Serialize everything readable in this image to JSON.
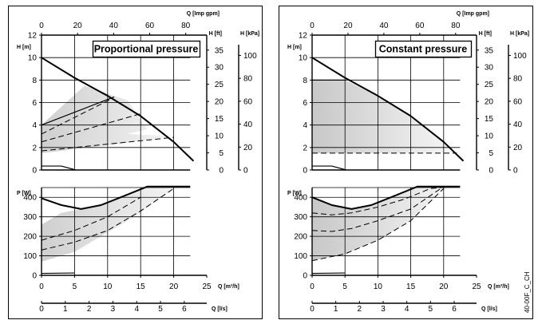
{
  "chart_data": [
    {
      "type": "line",
      "title": "Proportional pressure",
      "ticks": {
        "h_m": [
          "0",
          "2",
          "4",
          "6",
          "8",
          "10",
          "12"
        ],
        "h_ft": [
          "0",
          "5",
          "10",
          "15",
          "20",
          "25",
          "30",
          "35"
        ],
        "h_kpa": [
          "0",
          "20",
          "40",
          "60",
          "80",
          "100"
        ],
        "q_imp_gpm": [
          "0",
          "20",
          "40",
          "60",
          "80"
        ],
        "p_w": [
          "0",
          "100",
          "200",
          "300",
          "400"
        ],
        "q_m3h": [
          "0",
          "5",
          "10",
          "15",
          "20",
          "25"
        ],
        "q_ls": [
          "0",
          "1",
          "2",
          "3",
          "4",
          "5",
          "6"
        ]
      },
      "labels": {
        "q_imp_gpm": "Q [Imp gpm]",
        "h_m": "H [m]",
        "h_ft": "H [ft]",
        "h_kpa": "H [kPa]",
        "p_w": "P [W]",
        "q_m3h": "Q [m³/h]",
        "q_ls": "Q [l/s]"
      },
      "xlim_m3h": [
        0,
        25
      ],
      "ylim_h_m": [
        0,
        12
      ],
      "ylim_p_w": [
        0,
        450
      ],
      "grid": true,
      "h_curves": [
        {
          "name": "max",
          "style": "solid",
          "x": [
            0,
            5,
            10,
            15,
            20,
            23
          ],
          "y": [
            10,
            8.2,
            6.6,
            4.8,
            2.5,
            0.8
          ]
        },
        {
          "name": "min",
          "style": "solid",
          "x": [
            0,
            3,
            5.2
          ],
          "y": [
            0.35,
            0.35,
            0
          ]
        },
        {
          "name": "proportional-upper",
          "style": "solid",
          "x": [
            0,
            11
          ],
          "y": [
            4,
            6.5
          ]
        },
        {
          "name": "proportional-mid1",
          "style": "dashed",
          "x": [
            0,
            10.5
          ],
          "y": [
            3.2,
            6.3
          ]
        },
        {
          "name": "proportional-mid2",
          "style": "dashed",
          "x": [
            0,
            15
          ],
          "y": [
            2.5,
            5
          ]
        },
        {
          "name": "proportional-low",
          "style": "dashed",
          "x": [
            0,
            20
          ],
          "y": [
            1.7,
            2.9
          ]
        }
      ],
      "h_region": {
        "x": [
          0,
          6.5,
          13,
          16,
          13,
          20,
          10,
          0
        ],
        "y": [
          4,
          7.5,
          6.2,
          3.6,
          3.2,
          3,
          2.2,
          1.5
        ]
      },
      "p_curves": [
        {
          "name": "max",
          "style": "solid",
          "x": [
            0,
            3,
            6,
            9,
            12,
            16,
            22.5
          ],
          "y": [
            395,
            360,
            340,
            360,
            400,
            455,
            455
          ]
        },
        {
          "name": "upper",
          "style": "dashed",
          "x": [
            0,
            5,
            10,
            15
          ],
          "y": [
            180,
            230,
            300,
            400
          ]
        },
        {
          "name": "mid",
          "style": "dashed",
          "x": [
            0,
            5,
            10,
            15,
            20
          ],
          "y": [
            130,
            170,
            230,
            330,
            445
          ]
        },
        {
          "name": "min",
          "style": "solid",
          "x": [
            0,
            5
          ],
          "y": [
            10,
            12
          ]
        }
      ],
      "p_region": {
        "x": [
          0,
          3,
          6,
          9,
          12,
          16,
          20,
          15,
          10,
          5,
          0
        ],
        "y": [
          260,
          320,
          340,
          360,
          400,
          455,
          445,
          320,
          220,
          120,
          70
        ]
      }
    },
    {
      "type": "line",
      "title": "Constant pressure",
      "ticks": {
        "h_m": [
          "0",
          "2",
          "4",
          "6",
          "8",
          "10",
          "12"
        ],
        "h_ft": [
          "0",
          "5",
          "10",
          "15",
          "20",
          "25",
          "30",
          "35"
        ],
        "h_kpa": [
          "0",
          "20",
          "40",
          "60",
          "80",
          "100"
        ],
        "q_imp_gpm": [
          "0",
          "20",
          "40",
          "60",
          "80"
        ],
        "p_w": [
          "0",
          "100",
          "200",
          "300",
          "400"
        ],
        "q_m3h": [
          "0",
          "5",
          "10",
          "15",
          "20",
          "25"
        ],
        "q_ls": [
          "0",
          "1",
          "2",
          "3",
          "4",
          "5",
          "6"
        ]
      },
      "labels": {
        "q_imp_gpm": "Q [Imp gpm]",
        "h_m": "H [m]",
        "h_ft": "H [ft]",
        "h_kpa": "H [kPa]",
        "p_w": "P [W]",
        "q_m3h": "Q [m³/h]",
        "q_ls": "Q [l/s]"
      },
      "side_label": "40-00F_C_CH",
      "xlim_m3h": [
        0,
        25
      ],
      "ylim_h_m": [
        0,
        12
      ],
      "ylim_p_w": [
        0,
        450
      ],
      "grid": true,
      "h_curves": [
        {
          "name": "max",
          "style": "solid",
          "x": [
            0,
            5,
            10,
            15,
            20,
            23
          ],
          "y": [
            10,
            8.2,
            6.6,
            4.8,
            2.5,
            0.8
          ]
        },
        {
          "name": "min",
          "style": "solid",
          "x": [
            0,
            3,
            5.2
          ],
          "y": [
            0.35,
            0.35,
            0
          ]
        },
        {
          "name": "constant-upper",
          "style": "solid",
          "x": [
            0,
            5
          ],
          "y": [
            8,
            8
          ]
        },
        {
          "name": "constant-low",
          "style": "dashed",
          "x": [
            0,
            22
          ],
          "y": [
            1.5,
            1.5
          ]
        }
      ],
      "h_region": {
        "x": [
          0,
          5,
          10,
          15,
          20,
          22,
          0
        ],
        "y": [
          8,
          8,
          6.6,
          4.8,
          2.5,
          1.5,
          1.5
        ]
      },
      "p_curves": [
        {
          "name": "max",
          "style": "solid",
          "x": [
            0,
            3,
            6,
            9,
            12,
            16,
            22.5
          ],
          "y": [
            400,
            360,
            340,
            360,
            400,
            455,
            455
          ]
        },
        {
          "name": "upper",
          "style": "dashed",
          "x": [
            0,
            3,
            6,
            10,
            14,
            18,
            21.5
          ],
          "y": [
            320,
            310,
            320,
            350,
            390,
            445,
            455
          ]
        },
        {
          "name": "mid",
          "style": "dashed",
          "x": [
            0,
            3,
            6,
            10,
            15,
            20
          ],
          "y": [
            230,
            225,
            240,
            280,
            340,
            455
          ]
        },
        {
          "name": "low",
          "style": "dashed",
          "x": [
            0,
            5,
            10,
            15,
            20
          ],
          "y": [
            75,
            110,
            180,
            280,
            445
          ]
        },
        {
          "name": "min",
          "style": "solid",
          "x": [
            0,
            5
          ],
          "y": [
            10,
            12
          ]
        }
      ],
      "p_region": {
        "x": [
          0,
          3,
          6,
          9,
          12,
          16,
          22,
          20,
          15,
          10,
          5,
          0
        ],
        "y": [
          400,
          360,
          340,
          360,
          400,
          455,
          455,
          445,
          280,
          180,
          110,
          75
        ]
      }
    }
  ]
}
